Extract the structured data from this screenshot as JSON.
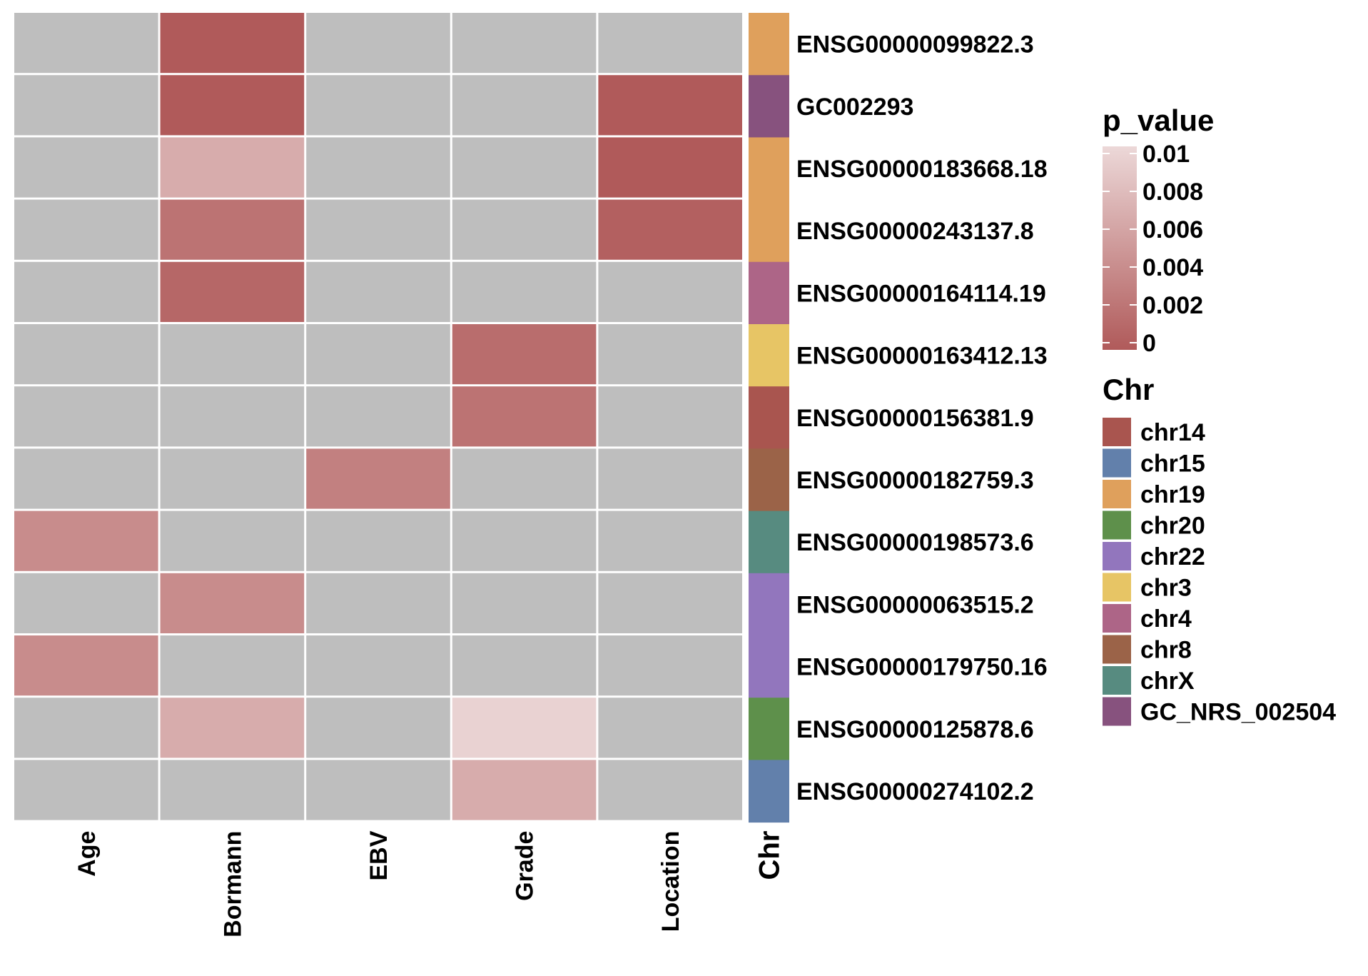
{
  "chart_data": {
    "type": "heatmap",
    "columns": [
      "Age",
      "Bormann",
      "EBV",
      "Grade",
      "Location"
    ],
    "annotation_column_label": "Chr",
    "rows": [
      {
        "gene": "ENSG00000099822.3",
        "chr": "chr19",
        "values": [
          null,
          0.0,
          null,
          null,
          null
        ]
      },
      {
        "gene": "GC002293",
        "chr": "GC_NRS_002504",
        "values": [
          null,
          0.0,
          null,
          null,
          0.0
        ]
      },
      {
        "gene": "ENSG00000183668.18",
        "chr": "chr19",
        "values": [
          null,
          0.0065,
          null,
          null,
          0.0
        ]
      },
      {
        "gene": "ENSG00000243137.8",
        "chr": "chr19",
        "values": [
          null,
          0.002,
          null,
          null,
          0.0005
        ]
      },
      {
        "gene": "ENSG00000164114.19",
        "chr": "chr4",
        "values": [
          null,
          0.001,
          null,
          null,
          null
        ]
      },
      {
        "gene": "ENSG00000163412.13",
        "chr": "chr3",
        "values": [
          null,
          null,
          null,
          0.0015,
          null
        ]
      },
      {
        "gene": "ENSG00000156381.9",
        "chr": "chr14",
        "values": [
          null,
          null,
          null,
          0.002,
          null
        ]
      },
      {
        "gene": "ENSG00000182759.3",
        "chr": "chr8",
        "values": [
          null,
          null,
          0.003,
          null,
          null
        ]
      },
      {
        "gene": "ENSG00000198573.6",
        "chr": "chrX",
        "values": [
          0.004,
          null,
          null,
          null,
          null
        ]
      },
      {
        "gene": "ENSG00000063515.2",
        "chr": "chr22",
        "values": [
          null,
          0.004,
          null,
          null,
          null
        ]
      },
      {
        "gene": "ENSG00000179750.16",
        "chr": "chr22",
        "values": [
          0.004,
          null,
          null,
          null,
          null
        ]
      },
      {
        "gene": "ENSG00000125878.6",
        "chr": "chr20",
        "values": [
          null,
          0.0065,
          null,
          0.0095,
          null
        ]
      },
      {
        "gene": "ENSG00000274102.2",
        "chr": "chr15",
        "values": [
          null,
          null,
          null,
          0.0065,
          null
        ]
      }
    ],
    "na_color": "#bebebe",
    "color_scale": {
      "title": "p_value",
      "min": 0,
      "max": 0.01,
      "low_color": "#b05a5a",
      "high_color": "#ecd8d8",
      "ticks": [
        {
          "value": 0.01,
          "label": "0.01"
        },
        {
          "value": 0.008,
          "label": "0.008"
        },
        {
          "value": 0.006,
          "label": "0.006"
        },
        {
          "value": 0.004,
          "label": "0.004"
        },
        {
          "value": 0.002,
          "label": "0.002"
        },
        {
          "value": 0,
          "label": "0"
        }
      ]
    },
    "chr_legend": {
      "title": "Chr",
      "items": [
        {
          "label": "chr14",
          "color": "#a9554f"
        },
        {
          "label": "chr15",
          "color": "#6280ab"
        },
        {
          "label": "chr19",
          "color": "#dfa05c"
        },
        {
          "label": "chr20",
          "color": "#5e904b"
        },
        {
          "label": "chr22",
          "color": "#9276bd"
        },
        {
          "label": "chr3",
          "color": "#e7c565"
        },
        {
          "label": "chr4",
          "color": "#ad6587"
        },
        {
          "label": "chr8",
          "color": "#9b6348"
        },
        {
          "label": "chrX",
          "color": "#578b80"
        },
        {
          "label": "GC_NRS_002504",
          "color": "#87527e"
        }
      ]
    }
  }
}
